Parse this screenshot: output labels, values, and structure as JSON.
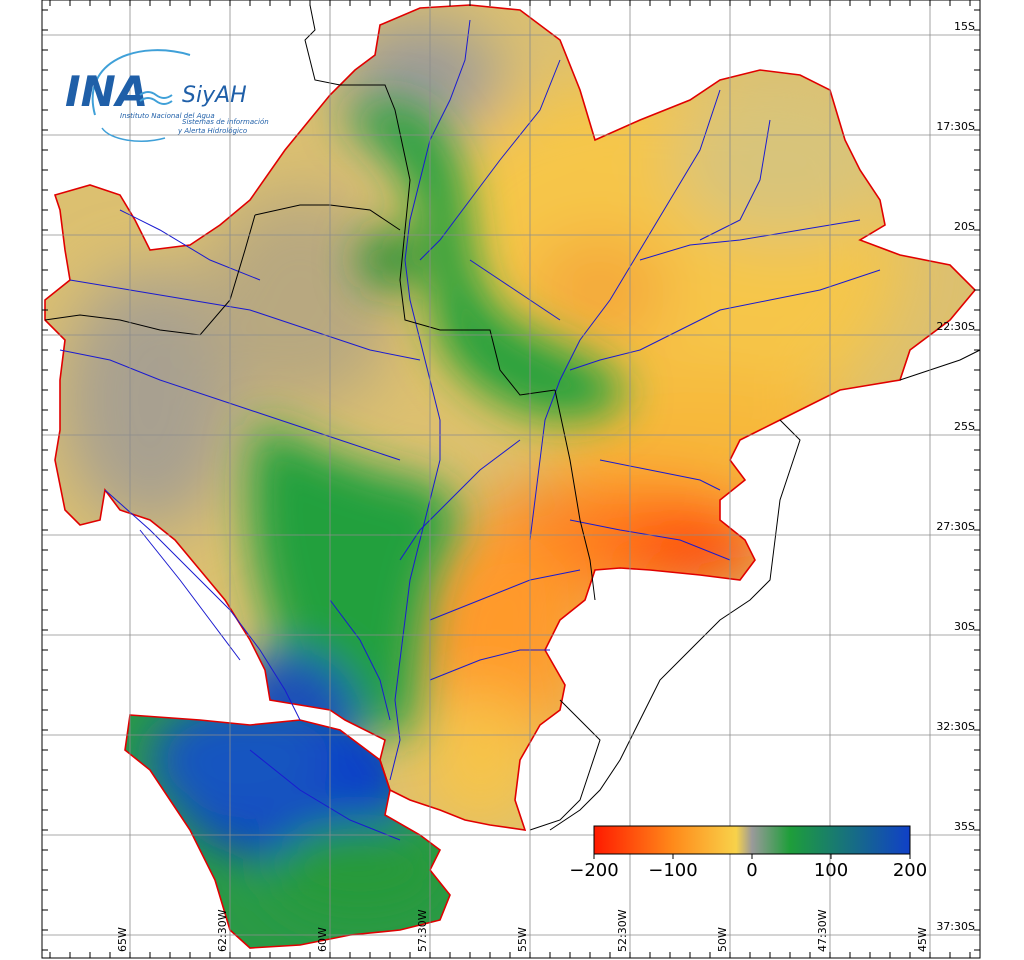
{
  "logo": {
    "brand": "INA",
    "system": "SiyAH",
    "institute": "Instituto Nacional del Agua",
    "subtitle_1": "Sistemas de información",
    "subtitle_2": "y Alerta Hidrológico"
  },
  "map": {
    "lat_labels": [
      "15S",
      "17:30S",
      "20S",
      "22:30S",
      "25S",
      "27:30S",
      "30S",
      "32:30S",
      "35S",
      "37:30S"
    ],
    "lon_labels": [
      "65W",
      "62:30W",
      "60W",
      "57:30W",
      "55W",
      "52:30W",
      "50W",
      "47:30W",
      "45W"
    ]
  },
  "colorbar": {
    "tick_labels": [
      "−200",
      "−100",
      "0",
      "100",
      "200"
    ],
    "colors": [
      "#ff1a00",
      "#ff8a1a",
      "#f8d24a",
      "#9a9a9a",
      "#1e9e3a",
      "#1040c8"
    ]
  },
  "colors": {
    "boundary": "#e00000",
    "rivers": "#1a1ad0",
    "borders": "#000000",
    "grid": "#8c8c8c"
  }
}
